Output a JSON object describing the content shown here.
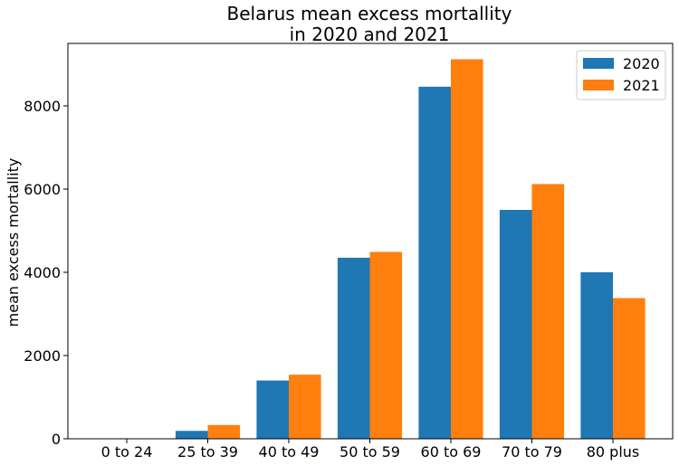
{
  "chart_data": {
    "type": "bar",
    "title_line1": "Belarus mean excess mortallity",
    "title_line2": "in 2020 and 2021",
    "xlabel": "",
    "ylabel": "mean excess mortallity",
    "categories": [
      "0 to 24",
      "25 to 39",
      "40 to 49",
      "50 to 59",
      "60 to 69",
      "70 to 79",
      "80 plus"
    ],
    "series": [
      {
        "name": "2020",
        "color": "#1f77b4",
        "values": [
          0,
          190,
          1400,
          4350,
          8460,
          5500,
          4000
        ]
      },
      {
        "name": "2021",
        "color": "#ff7f0e",
        "values": [
          0,
          330,
          1540,
          4490,
          9120,
          6120,
          3380
        ]
      }
    ],
    "ylim": [
      0,
      9500
    ],
    "yticks": [
      0,
      2000,
      4000,
      6000,
      8000
    ],
    "grid": false,
    "legend_position": "top-right"
  }
}
